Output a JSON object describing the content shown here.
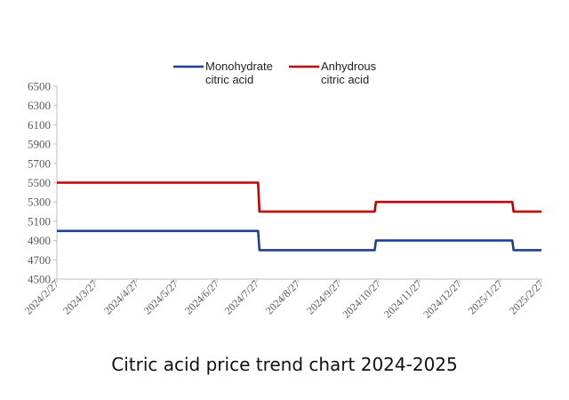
{
  "caption": "Citric acid price trend chart 2024-2025",
  "chart_data": {
    "type": "line",
    "title": "Citric acid price trend chart 2024-2025",
    "xlabel": "",
    "ylabel": "",
    "x_ticks": [
      "2024/2/27",
      "2024/3/27",
      "2024/4/27",
      "2024/5/27",
      "2024/6/27",
      "2024/7/27",
      "2024/8/27",
      "2024/9/27",
      "2024/10/27",
      "2024/11/27",
      "2024/12/27",
      "2025/1/27",
      "2025/2/27"
    ],
    "ylim": [
      4500,
      6500
    ],
    "y_ticks": [
      4500,
      4700,
      4900,
      5100,
      5300,
      5500,
      5700,
      5900,
      6100,
      6300,
      6500
    ],
    "grid": false,
    "legend_position": "top",
    "series": [
      {
        "name_lines": [
          "Monohydrate",
          "citric acid"
        ],
        "color": "#1f3f8f",
        "points": [
          {
            "x": "2024/2/27",
            "y": 5000
          },
          {
            "x": "2024/7/28",
            "y": 5000
          },
          {
            "x": "2024/7/29",
            "y": 4800
          },
          {
            "x": "2024/10/24",
            "y": 4800
          },
          {
            "x": "2024/10/25",
            "y": 4900
          },
          {
            "x": "2025/2/5",
            "y": 4900
          },
          {
            "x": "2025/2/6",
            "y": 4800
          },
          {
            "x": "2025/2/27",
            "y": 4800
          }
        ]
      },
      {
        "name_lines": [
          "Anhydrous",
          "citric acid"
        ],
        "color": "#c00000",
        "points": [
          {
            "x": "2024/2/27",
            "y": 5500
          },
          {
            "x": "2024/7/28",
            "y": 5500
          },
          {
            "x": "2024/7/29",
            "y": 5200
          },
          {
            "x": "2024/10/24",
            "y": 5200
          },
          {
            "x": "2024/10/25",
            "y": 5300
          },
          {
            "x": "2025/2/5",
            "y": 5300
          },
          {
            "x": "2025/2/6",
            "y": 5200
          },
          {
            "x": "2025/2/27",
            "y": 5200
          }
        ]
      }
    ]
  }
}
